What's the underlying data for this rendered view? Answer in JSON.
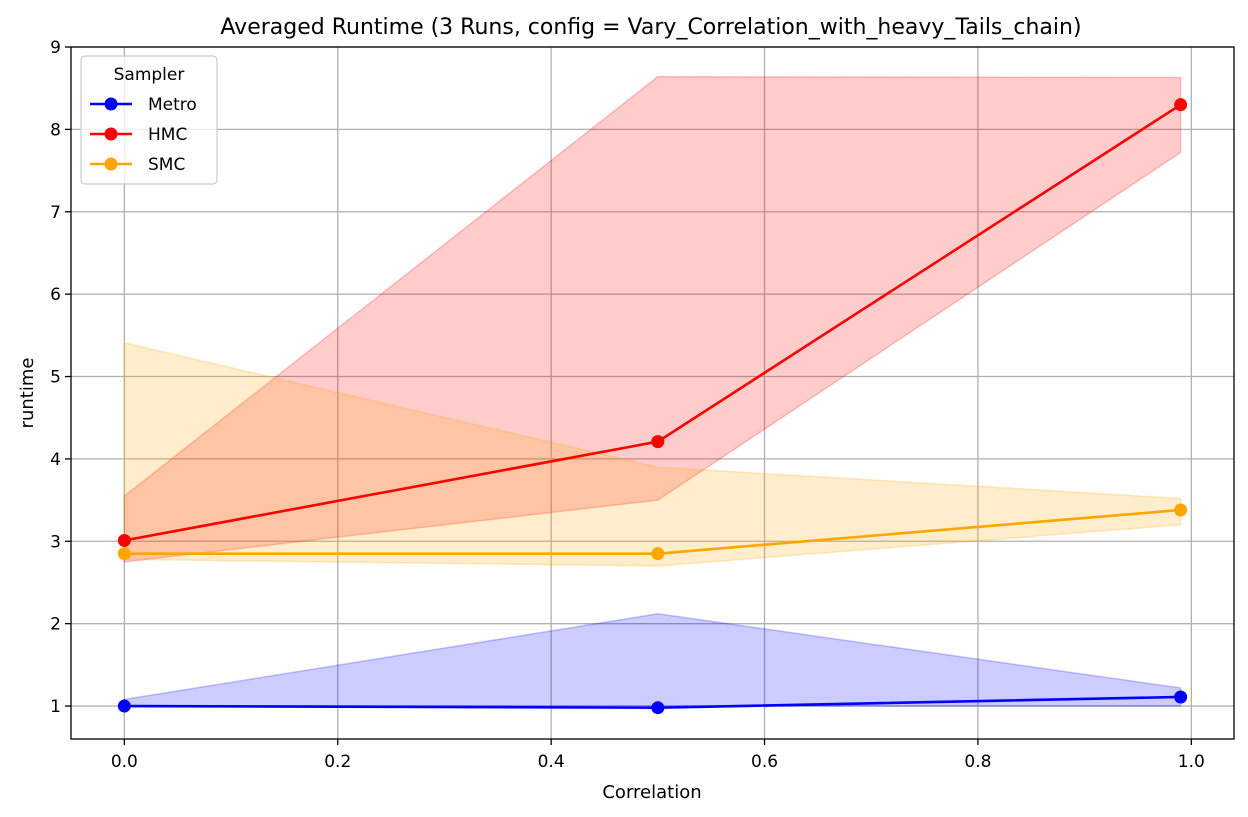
{
  "chart_data": {
    "type": "line",
    "title": "Averaged Runtime (3 Runs, config = Vary_Correlation_with_heavy_Tails_chain)",
    "xlabel": "Correlation",
    "ylabel": "runtime",
    "xlim": [
      -0.05,
      1.04
    ],
    "ylim": [
      0.6,
      9.0
    ],
    "xticks": [
      0.0,
      0.2,
      0.4,
      0.6,
      0.8,
      1.0
    ],
    "xtick_labels": [
      "0.0",
      "0.2",
      "0.4",
      "0.6",
      "0.8",
      "1.0"
    ],
    "yticks": [
      1,
      2,
      3,
      4,
      5,
      6,
      7,
      8,
      9
    ],
    "ytick_labels": [
      "1",
      "2",
      "3",
      "4",
      "5",
      "6",
      "7",
      "8",
      "9"
    ],
    "grid": true,
    "legend": {
      "title": "Sampler",
      "placement": "top-left"
    },
    "x": [
      0.0,
      0.5,
      0.99
    ],
    "series": [
      {
        "name": "Metro",
        "color": "#0000ff",
        "values": [
          1.0,
          0.98,
          1.11
        ],
        "lower": [
          1.0,
          1.0,
          1.0
        ],
        "upper": [
          1.08,
          2.12,
          1.22
        ]
      },
      {
        "name": "HMC",
        "color": "#ff0000",
        "values": [
          3.01,
          4.21,
          8.3
        ],
        "lower": [
          2.75,
          3.5,
          7.72
        ],
        "upper": [
          3.55,
          8.64,
          8.63
        ]
      },
      {
        "name": "SMC",
        "color": "#ffa500",
        "values": [
          2.85,
          2.85,
          3.38
        ],
        "lower": [
          2.78,
          2.7,
          3.2
        ],
        "upper": [
          5.41,
          3.9,
          3.52
        ]
      }
    ]
  }
}
